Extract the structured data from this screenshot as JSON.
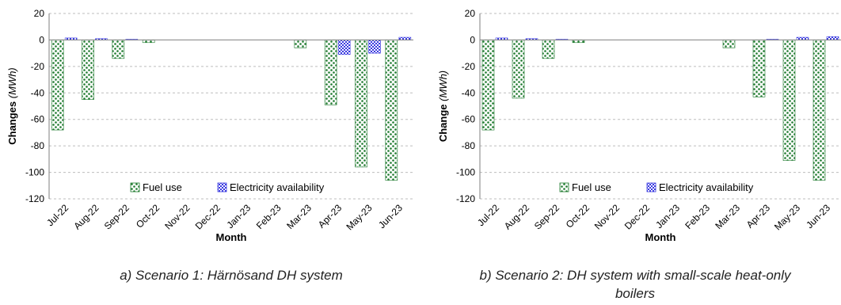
{
  "colors": {
    "fuel": "#1e7a2e",
    "elec": "#3a3ae0",
    "grid": "#bdbdbd",
    "axis": "#7f7f7f"
  },
  "chart_data": [
    {
      "type": "bar",
      "categories": [
        "Jul-22",
        "Aug-22",
        "Sep-22",
        "Oct-22",
        "Nov-22",
        "Dec-22",
        "Jan-23",
        "Feb-23",
        "Mar-23",
        "Apr-23",
        "May-23",
        "Jun-23"
      ],
      "series": [
        {
          "name": "Fuel use",
          "values": [
            -68,
            -45,
            -14,
            -2,
            0,
            0,
            0,
            0,
            -6,
            -49,
            -96,
            -106
          ]
        },
        {
          "name": "Electricity availability",
          "values": [
            1.5,
            1,
            0.5,
            0,
            0,
            0,
            0,
            0,
            0,
            -11,
            -10,
            2
          ]
        }
      ],
      "ylabel_main": "Changes",
      "ylabel_unit": "(MWh)",
      "xlabel": "Month",
      "ylim": [
        -120,
        20
      ],
      "yticks": [
        "20",
        "0",
        "-20",
        "-40",
        "-60",
        "-80",
        "-100",
        "-120"
      ],
      "grid": true,
      "legend": "bottom-center",
      "caption": "a) Scenario 1: Härnösand DH system",
      "caption_line2": ""
    },
    {
      "type": "bar",
      "categories": [
        "Jul-22",
        "Aug-22",
        "Sep-22",
        "Oct-22",
        "Nov-22",
        "Dec-22",
        "Jan-23",
        "Feb-23",
        "Mar-23",
        "Apr-23",
        "May-23",
        "Jun-23"
      ],
      "series": [
        {
          "name": "Fuel use",
          "values": [
            -68,
            -44,
            -14,
            -2,
            0,
            0,
            0,
            0,
            -6,
            -43,
            -91,
            -106
          ]
        },
        {
          "name": "Electricity availability",
          "values": [
            1.5,
            1,
            0.5,
            0,
            0,
            0,
            0,
            0,
            0,
            0.5,
            2,
            2.5
          ]
        }
      ],
      "ylabel_main": "Change",
      "ylabel_unit": "(MWh)",
      "xlabel": "Month",
      "ylim": [
        -120,
        20
      ],
      "yticks": [
        "20",
        "0",
        "-20",
        "-40",
        "-60",
        "-80",
        "-100",
        "-120"
      ],
      "grid": true,
      "legend": "bottom-center",
      "caption": "b) Scenario 2: DH system with small-scale heat-only",
      "caption_line2": "boilers"
    }
  ]
}
